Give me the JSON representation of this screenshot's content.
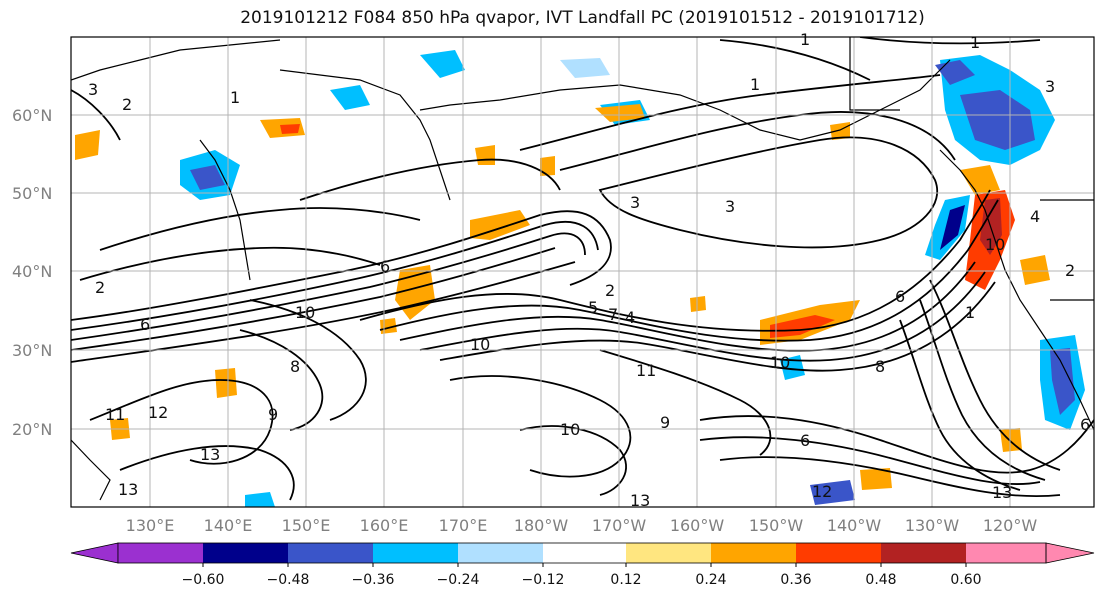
{
  "title": "2019101212 F084 850 hPa qvapor, IVT Landfall PC (2019101512 - 2019101712)",
  "map": {
    "lat_labels": [
      "60°N",
      "50°N",
      "40°N",
      "30°N",
      "20°N"
    ],
    "lon_labels": [
      "130°E",
      "140°E",
      "150°E",
      "160°E",
      "170°E",
      "180°W",
      "170°W",
      "160°W",
      "150°W",
      "140°W",
      "130°W",
      "120°W"
    ],
    "contour_labels": [
      {
        "text": "3"
      },
      {
        "text": "2"
      },
      {
        "text": "1"
      },
      {
        "text": "1"
      },
      {
        "text": "1"
      },
      {
        "text": "3"
      },
      {
        "text": "3"
      },
      {
        "text": "3"
      },
      {
        "text": "1"
      },
      {
        "text": "4"
      },
      {
        "text": "6"
      },
      {
        "text": "6"
      },
      {
        "text": "6"
      },
      {
        "text": "2"
      },
      {
        "text": "2"
      },
      {
        "text": "10"
      },
      {
        "text": "10"
      },
      {
        "text": "10"
      },
      {
        "text": "10"
      },
      {
        "text": "10"
      },
      {
        "text": "11"
      },
      {
        "text": "12"
      },
      {
        "text": "12"
      },
      {
        "text": "13"
      },
      {
        "text": "13"
      },
      {
        "text": "13"
      },
      {
        "text": "13"
      },
      {
        "text": "9"
      },
      {
        "text": "9"
      },
      {
        "text": "8"
      },
      {
        "text": "8"
      },
      {
        "text": "7"
      },
      {
        "text": "5"
      },
      {
        "text": "4"
      },
      {
        "text": "11"
      },
      {
        "text": "1"
      },
      {
        "text": "6"
      },
      {
        "text": "6"
      },
      {
        "text": "2"
      }
    ]
  },
  "colorbar": {
    "ticks": [
      "−0.60",
      "−0.48",
      "−0.36",
      "−0.24",
      "−0.12",
      "0.12",
      "0.24",
      "0.36",
      "0.48",
      "0.60"
    ],
    "colors": [
      "#9b30d0",
      "#00008b",
      "#3a55c9",
      "#00bfff",
      "#b0e0ff",
      "#ffffff",
      "#ffe680",
      "#ffa500",
      "#ff3c00",
      "#b22222",
      "#ff88b0"
    ]
  }
}
